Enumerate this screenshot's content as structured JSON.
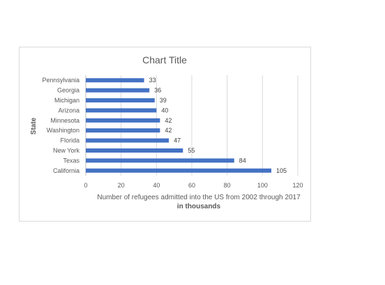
{
  "chart_data": {
    "type": "bar",
    "orientation": "horizontal",
    "title": "Chart Title",
    "xlabel": "Number of refugees admitted into the US from 2002 through 2017",
    "xlabel_sub": "in thousands",
    "ylabel": "State",
    "categories": [
      "California",
      "Texas",
      "New York",
      "Florida",
      "Washington",
      "Minnesota",
      "Arizona",
      "Michigan",
      "Georgia",
      "Pennsylvania"
    ],
    "values": [
      105,
      84,
      55,
      47,
      42,
      42,
      40,
      39,
      36,
      33
    ],
    "xlim": [
      0,
      120
    ],
    "xticks": [
      0,
      20,
      40,
      60,
      80,
      100,
      120
    ],
    "grid": true,
    "legend": "none",
    "bar_color": "#4472c4",
    "grid_color": "#d9d9d9"
  }
}
